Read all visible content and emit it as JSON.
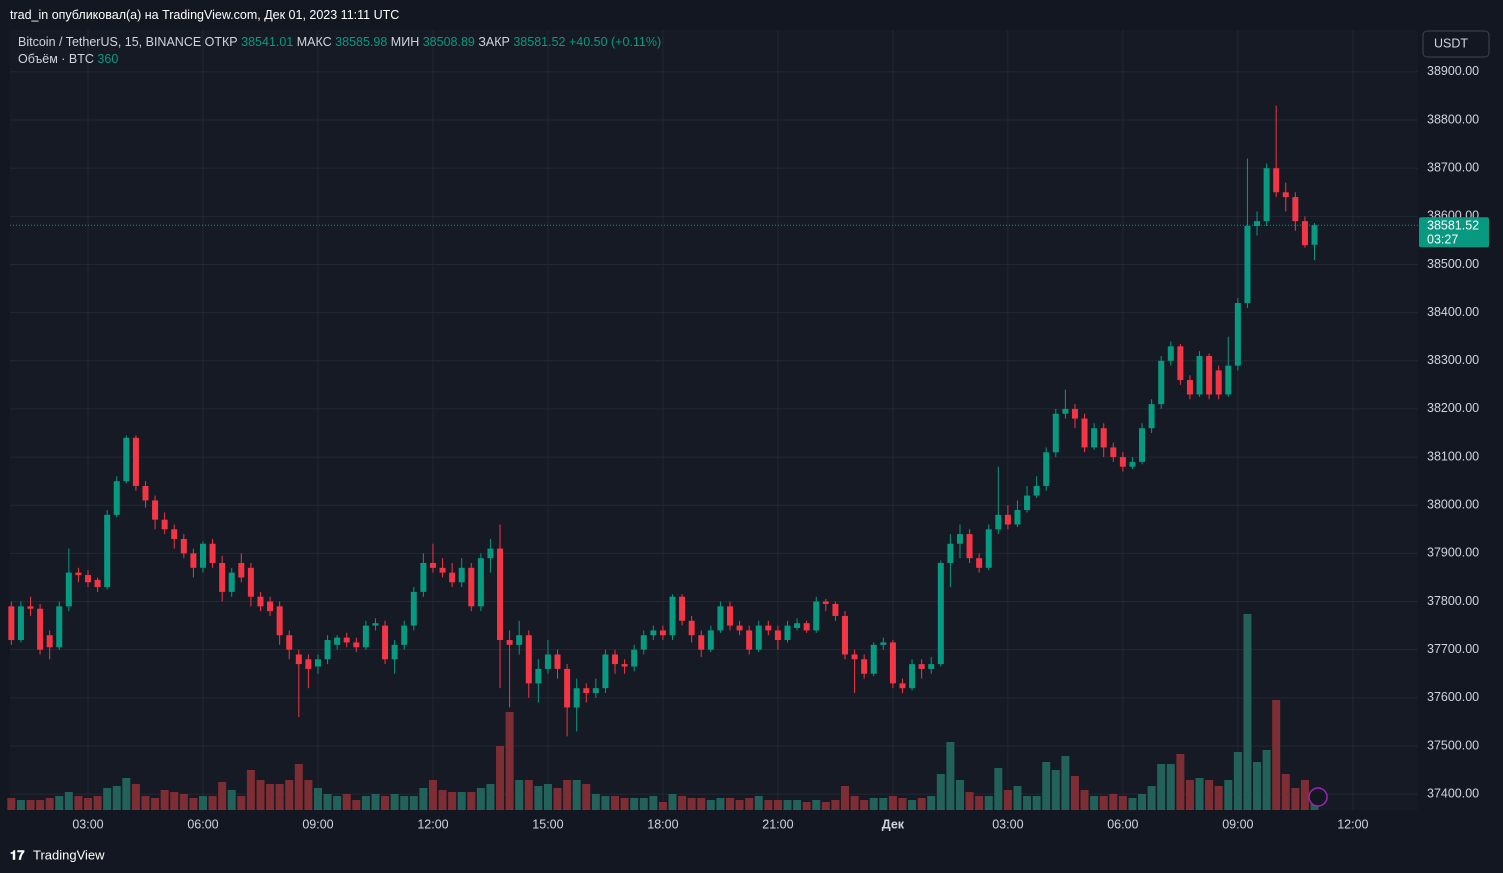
{
  "header": {
    "publisher": "trad_in опубликовал(а) на TradingView.com, Дек 01, 2023 11:11 UTC",
    "footer_logo": "TradingView",
    "currency_button": "USDT"
  },
  "chart_data": {
    "type": "candlestick",
    "symbol": "Bitcoin / TetherUS, 15, BINANCE",
    "legend": {
      "open_label": "ОТКР",
      "high_label": "МАКС",
      "low_label": "МИН",
      "close_label": "ЗАКР",
      "change": "+40.50 (+0.11%)",
      "volume_label": "Объём · BTC"
    },
    "countdown": "03:27",
    "up_color": "#089981",
    "down_color": "#f23645",
    "volume_up_color": "#22625a",
    "volume_down_color": "#7c2e34",
    "grid": true,
    "xlim": [
      0.965,
      37.7
    ],
    "xticks": [
      {
        "value": 3,
        "label": "03:00"
      },
      {
        "value": 6,
        "label": "06:00"
      },
      {
        "value": 9,
        "label": "09:00"
      },
      {
        "value": 12,
        "label": "12:00"
      },
      {
        "value": 15,
        "label": "15:00"
      },
      {
        "value": 18,
        "label": "18:00"
      },
      {
        "value": 21,
        "label": "21:00"
      },
      {
        "value": 24,
        "label": "Дек"
      },
      {
        "value": 27,
        "label": "03:00"
      },
      {
        "value": 30,
        "label": "06:00"
      },
      {
        "value": 33,
        "label": "09:00"
      },
      {
        "value": 36,
        "label": "12:00"
      }
    ],
    "ylim": [
      37367,
      38987
    ],
    "yticks": [
      {
        "value": 37400,
        "label": "37400.00"
      },
      {
        "value": 37500,
        "label": "37500.00"
      },
      {
        "value": 37600,
        "label": "37600.00"
      },
      {
        "value": 37700,
        "label": "37700.00"
      },
      {
        "value": 37800,
        "label": "37800.00"
      },
      {
        "value": 37900,
        "label": "37900.00"
      },
      {
        "value": 38000,
        "label": "38000.00"
      },
      {
        "value": 38100,
        "label": "38100.00"
      },
      {
        "value": 38200,
        "label": "38200.00"
      },
      {
        "value": 38300,
        "label": "38300.00"
      },
      {
        "value": 38400,
        "label": "38400.00"
      },
      {
        "value": 38500,
        "label": "38500.00"
      },
      {
        "value": 38600,
        "label": "38600.00"
      },
      {
        "value": 38700,
        "label": "38700.00"
      },
      {
        "value": 38800,
        "label": "38800.00"
      },
      {
        "value": 38900,
        "label": "38900.00"
      }
    ],
    "x": [
      1,
      1.25,
      1.5,
      1.75,
      2,
      2.25,
      2.5,
      2.75,
      3,
      3.25,
      3.5,
      3.75,
      4,
      4.25,
      4.5,
      4.75,
      5,
      5.25,
      5.5,
      5.75,
      6,
      6.25,
      6.5,
      6.75,
      7,
      7.25,
      7.5,
      7.75,
      8,
      8.25,
      8.5,
      8.75,
      9,
      9.25,
      9.5,
      9.75,
      10,
      10.25,
      10.5,
      10.75,
      11,
      11.25,
      11.5,
      11.75,
      12,
      12.25,
      12.5,
      12.75,
      13,
      13.25,
      13.5,
      13.75,
      14,
      14.25,
      14.5,
      14.75,
      15,
      15.25,
      15.5,
      15.75,
      16,
      16.25,
      16.5,
      16.75,
      17,
      17.25,
      17.5,
      17.75,
      18,
      18.25,
      18.5,
      18.75,
      19,
      19.25,
      19.5,
      19.75,
      20,
      20.25,
      20.5,
      20.75,
      21,
      21.25,
      21.5,
      21.75,
      22,
      22.25,
      22.5,
      22.75,
      23,
      23.25,
      23.5,
      23.75,
      24,
      24.25,
      24.5,
      24.75,
      25,
      25.25,
      25.5,
      25.75,
      26,
      26.25,
      26.5,
      26.75,
      27,
      27.25,
      27.5,
      27.75,
      28,
      28.25,
      28.5,
      28.75,
      29,
      29.25,
      29.5,
      29.75,
      30,
      30.25,
      30.5,
      30.75,
      31,
      31.25,
      31.5,
      31.75,
      32,
      32.25,
      32.5,
      32.75,
      33,
      33.25,
      33.5,
      33.75,
      34,
      34.25,
      34.5,
      34.75,
      35
    ],
    "open": [
      37790,
      37720,
      37790,
      37785,
      37730,
      37705,
      37790,
      37860,
      37855,
      37845,
      37830,
      37980,
      38050,
      38140,
      38040,
      38010,
      37970,
      37950,
      37930,
      37900,
      37870,
      37920,
      37880,
      37820,
      37880,
      37870,
      37810,
      37800,
      37790,
      37730,
      37690,
      37680,
      37665,
      37680,
      37710,
      37725,
      37715,
      37705,
      37750,
      37750,
      37680,
      37710,
      37750,
      37820,
      37880,
      37870,
      37860,
      37840,
      37870,
      37790,
      37890,
      37910,
      37720,
      37710,
      37730,
      37630,
      37660,
      37690,
      37660,
      37580,
      37620,
      37610,
      37620,
      37690,
      37670,
      37665,
      37700,
      37730,
      37740,
      37730,
      37810,
      37760,
      37730,
      37700,
      37740,
      37790,
      37750,
      37740,
      37700,
      37750,
      37740,
      37720,
      37745,
      37755,
      37740,
      37800,
      37795,
      37770,
      37690,
      37680,
      37650,
      37710,
      37715,
      37630,
      37620,
      37670,
      37660,
      37670,
      37880,
      37920,
      37940,
      37890,
      37870,
      37950,
      37980,
      37960,
      37990,
      38020,
      38040,
      38110,
      38190,
      38200,
      38180,
      38120,
      38160,
      38120,
      38100,
      38080,
      38090,
      38160,
      38210,
      38300,
      38330,
      38260,
      38230,
      38310,
      38280,
      38230,
      38290,
      38420,
      38580,
      38590,
      38700,
      38650,
      38640,
      38590,
      38541.01
    ],
    "high": [
      37800,
      37800,
      37810,
      37795,
      37740,
      37800,
      37910,
      37870,
      37865,
      37850,
      37990,
      38060,
      38145,
      38145,
      38050,
      38020,
      37985,
      37960,
      37940,
      37910,
      37925,
      37930,
      37895,
      37870,
      37900,
      37880,
      37820,
      37810,
      37800,
      37740,
      37700,
      37690,
      37690,
      37730,
      37730,
      37735,
      37725,
      37760,
      37765,
      37760,
      37720,
      37760,
      37830,
      37900,
      37920,
      37890,
      37880,
      37890,
      37880,
      37900,
      37930,
      37960,
      37740,
      37760,
      37740,
      37680,
      37720,
      37700,
      37670,
      37640,
      37630,
      37640,
      37700,
      37700,
      37680,
      37710,
      37740,
      37750,
      37750,
      37815,
      37815,
      37770,
      37740,
      37750,
      37800,
      37800,
      37760,
      37750,
      37760,
      37760,
      37750,
      37760,
      37765,
      37760,
      37810,
      37805,
      37800,
      37780,
      37700,
      37690,
      37715,
      37725,
      37720,
      37640,
      37680,
      37680,
      37685,
      37885,
      37940,
      37960,
      37950,
      37900,
      37960,
      38080,
      38000,
      38010,
      38040,
      38060,
      38120,
      38200,
      38240,
      38210,
      38190,
      38170,
      38170,
      38130,
      38110,
      38100,
      38170,
      38220,
      38310,
      38340,
      38335,
      38270,
      38320,
      38315,
      38290,
      38350,
      38430,
      38720,
      38610,
      38710,
      38830,
      38670,
      38650,
      38600,
      38585.98
    ],
    "low": [
      37710,
      37715,
      37770,
      37690,
      37680,
      37700,
      37780,
      37840,
      37830,
      37820,
      37825,
      37975,
      38045,
      38030,
      37995,
      37950,
      37940,
      37910,
      37890,
      37850,
      37860,
      37870,
      37800,
      37810,
      37840,
      37790,
      37780,
      37770,
      37710,
      37680,
      37560,
      37620,
      37650,
      37670,
      37700,
      37705,
      37695,
      37700,
      37740,
      37670,
      37650,
      37700,
      37740,
      37810,
      37860,
      37850,
      37830,
      37830,
      37780,
      37780,
      37860,
      37620,
      37580,
      37690,
      37600,
      37590,
      37650,
      37640,
      37520,
      37530,
      37590,
      37600,
      37610,
      37650,
      37650,
      37655,
      37690,
      37720,
      37720,
      37720,
      37750,
      37715,
      37685,
      37695,
      37735,
      37740,
      37730,
      37690,
      37695,
      37730,
      37700,
      37715,
      37740,
      37735,
      37735,
      37780,
      37760,
      37680,
      37610,
      37640,
      37645,
      37700,
      37620,
      37610,
      37615,
      37640,
      37650,
      37665,
      37830,
      37890,
      37880,
      37860,
      37865,
      37940,
      37950,
      37955,
      37985,
      38015,
      38030,
      38100,
      38180,
      38160,
      38110,
      38115,
      38100,
      38090,
      38070,
      38075,
      38085,
      38150,
      38200,
      38290,
      38250,
      38220,
      38225,
      38220,
      38220,
      38225,
      38280,
      38410,
      38560,
      38580,
      38640,
      38610,
      38570,
      38535,
      38508.89
    ],
    "close": [
      37720,
      37790,
      37785,
      37700,
      37705,
      37790,
      37860,
      37855,
      37840,
      37830,
      37980,
      38050,
      38140,
      38040,
      38010,
      37970,
      37950,
      37930,
      37900,
      37870,
      37920,
      37880,
      37820,
      37860,
      37850,
      37810,
      37790,
      37780,
      37730,
      37700,
      37670,
      37660,
      37680,
      37720,
      37725,
      37715,
      37705,
      37750,
      37755,
      37680,
      37710,
      37750,
      37820,
      37880,
      37870,
      37860,
      37840,
      37870,
      37790,
      37890,
      37910,
      37720,
      37710,
      37730,
      37630,
      37660,
      37690,
      37660,
      37580,
      37620,
      37610,
      37620,
      37690,
      37670,
      37665,
      37700,
      37730,
      37740,
      37730,
      37810,
      37760,
      37730,
      37700,
      37740,
      37790,
      37750,
      37740,
      37700,
      37750,
      37740,
      37720,
      37750,
      37755,
      37740,
      37800,
      37795,
      37770,
      37690,
      37680,
      37650,
      37710,
      37715,
      37630,
      37620,
      37670,
      37660,
      37670,
      37880,
      37920,
      37940,
      37890,
      37870,
      37950,
      37980,
      37960,
      37990,
      38020,
      38040,
      38110,
      38190,
      38200,
      38180,
      38120,
      38160,
      38120,
      38100,
      38080,
      38090,
      38160,
      38210,
      38300,
      38330,
      38260,
      38230,
      38310,
      38230,
      38230,
      38290,
      38420,
      38580,
      38590,
      38700,
      38650,
      38640,
      38590,
      38540,
      38581.52
    ],
    "volume": [
      480,
      400,
      400,
      400,
      480,
      560,
      720,
      560,
      480,
      560,
      880,
      960,
      1280,
      1040,
      560,
      480,
      800,
      720,
      640,
      480,
      560,
      560,
      1120,
      800,
      560,
      1600,
      1200,
      1040,
      1040,
      1200,
      1840,
      1200,
      880,
      640,
      560,
      640,
      400,
      560,
      640,
      560,
      640,
      560,
      560,
      880,
      1200,
      800,
      720,
      720,
      720,
      880,
      1040,
      2560,
      3920,
      1200,
      1200,
      960,
      1040,
      880,
      1200,
      1200,
      1040,
      640,
      560,
      560,
      480,
      480,
      480,
      560,
      320,
      640,
      560,
      480,
      480,
      400,
      480,
      480,
      400,
      480,
      560,
      400,
      400,
      400,
      400,
      320,
      400,
      320,
      400,
      960,
      560,
      400,
      480,
      480,
      560,
      480,
      400,
      480,
      560,
      1440,
      2720,
      1200,
      720,
      560,
      560,
      1680,
      800,
      960,
      560,
      560,
      1920,
      1600,
      2160,
      1360,
      800,
      560,
      560,
      640,
      560,
      480,
      640,
      960,
      1840,
      1840,
      2240,
      1200,
      1280,
      1200,
      960,
      1200,
      2320,
      7840,
      1920,
      2400,
      4400,
      1440,
      880,
      1200,
      360
    ]
  }
}
